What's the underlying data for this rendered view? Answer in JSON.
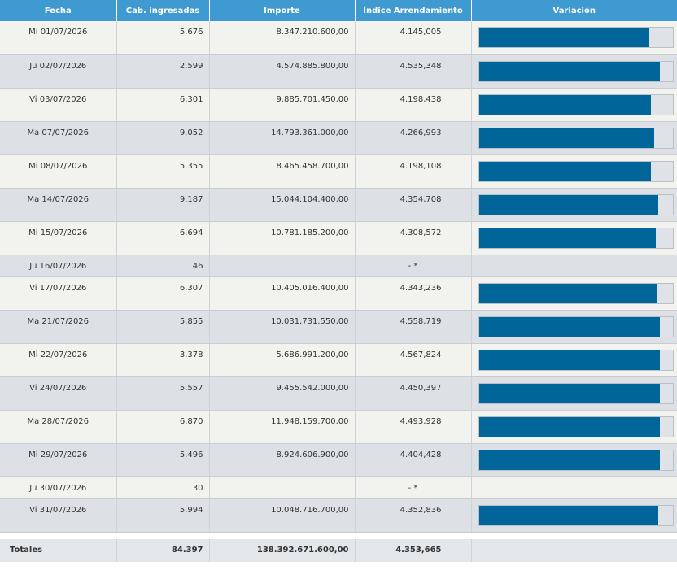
{
  "headers": [
    "Fecha",
    "Cab. ingresadas",
    "Importe",
    "Índice Arrendamiento",
    "Variación"
  ],
  "rows": [
    {
      "fecha": "Mi 01/07/2026",
      "cab": "5.676",
      "importe": "8.347.210.600,00",
      "indice": "4.145,005",
      "variacion": 0.88
    },
    {
      "fecha": "Ju 02/07/2026",
      "cab": "2.599",
      "importe": "4.574.885.800,00",
      "indice": "4.535,348",
      "variacion": 0.935
    },
    {
      "fecha": "Vi 03/07/2026",
      "cab": "6.301",
      "importe": "9.885.701.450,00",
      "indice": "4.198,438",
      "variacion": 0.89
    },
    {
      "fecha": "Ma 07/07/2026",
      "cab": "9.052",
      "importe": "14.793.361.000,00",
      "indice": "4.266,993",
      "variacion": 0.905
    },
    {
      "fecha": "Mi 08/07/2026",
      "cab": "5.355",
      "importe": "8.465.458.700,00",
      "indice": "4.198,108",
      "variacion": 0.89
    },
    {
      "fecha": "Ma 14/07/2026",
      "cab": "9.187",
      "importe": "15.044.104.400,00",
      "indice": "4.354,708",
      "variacion": 0.925
    },
    {
      "fecha": "Mi 15/07/2026",
      "cab": "6.694",
      "importe": "10.781.185.200,00",
      "indice": "4.308,572",
      "variacion": 0.915
    },
    {
      "fecha": "Ju 16/07/2026",
      "cab": "46",
      "importe": "",
      "indice": "- *",
      "variacion": null
    },
    {
      "fecha": "Vi 17/07/2026",
      "cab": "6.307",
      "importe": "10.405.016.400,00",
      "indice": "4.343,236",
      "variacion": 0.92
    },
    {
      "fecha": "Ma 21/07/2026",
      "cab": "5.855",
      "importe": "10.031.731.550,00",
      "indice": "4.558,719",
      "variacion": 0.935
    },
    {
      "fecha": "Mi 22/07/2026",
      "cab": "3.378",
      "importe": "5.686.991.200,00",
      "indice": "4.567,824",
      "variacion": 0.935
    },
    {
      "fecha": "Vi 24/07/2026",
      "cab": "5.557",
      "importe": "9.455.542.000,00",
      "indice": "4.450,397",
      "variacion": 0.935
    },
    {
      "fecha": "Ma 28/07/2026",
      "cab": "6.870",
      "importe": "11.948.159.700,00",
      "indice": "4.493,928",
      "variacion": 0.935
    },
    {
      "fecha": "Mi 29/07/2026",
      "cab": "5.496",
      "importe": "8.924.606.900,00",
      "indice": "4.404,428",
      "variacion": 0.935
    },
    {
      "fecha": "Ju 30/07/2026",
      "cab": "30",
      "importe": "",
      "indice": "- *",
      "variacion": null
    },
    {
      "fecha": "Vi 31/07/2026",
      "cab": "5.994",
      "importe": "10.048.716.700,00",
      "indice": "4.352,836",
      "variacion": 0.925
    }
  ],
  "totals": {
    "label": "Totales",
    "cab": "84.397",
    "importe": "138.392.671.600,00",
    "indice": "4.353,665"
  },
  "colors": {
    "header_bg": "#3f9ad2",
    "bar_fill": "#006598",
    "row_odd": "#f2f2ef",
    "row_even": "#dde1e5"
  }
}
